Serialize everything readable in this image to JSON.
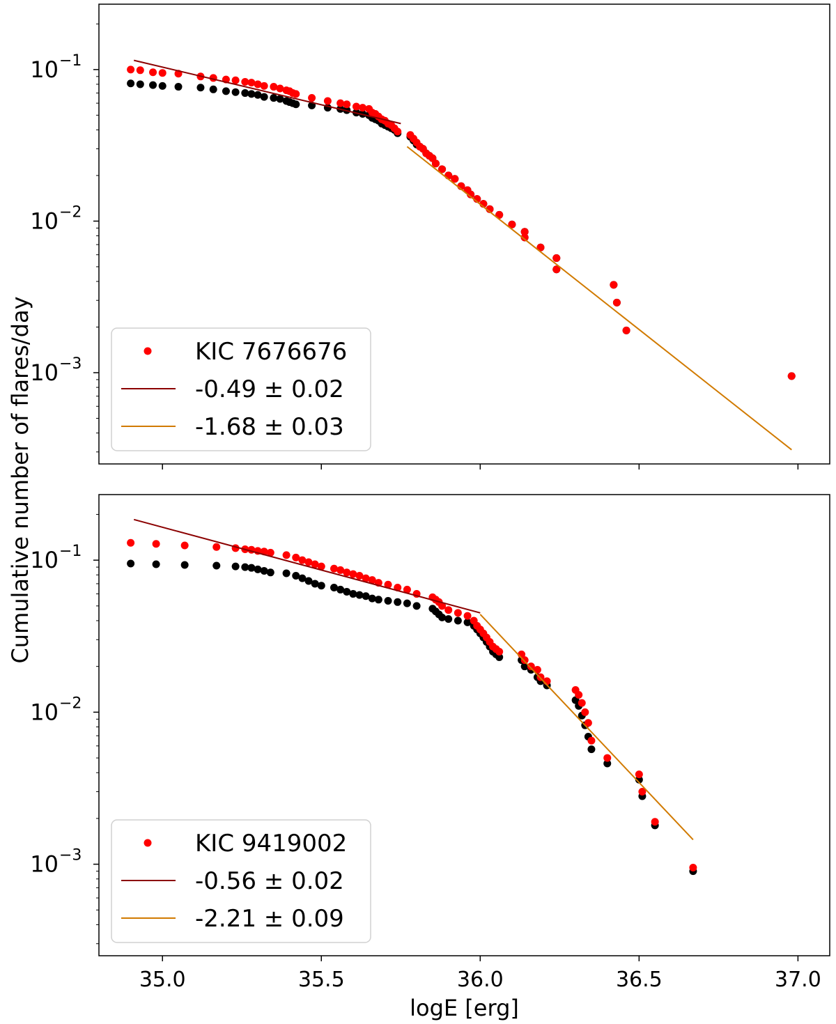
{
  "chart_data": [
    {
      "type": "scatter",
      "ylabel": "Cumulative number of flares/day",
      "xlabel": "",
      "xlim": [
        34.8,
        37.1
      ],
      "ylim": [
        0.00025,
        0.27
      ],
      "yscale": "log",
      "xticks": [
        "35.0",
        "35.5",
        "36.0",
        "36.5",
        "37.0"
      ],
      "show_xticklabels": false,
      "yticks": [
        {
          "value": 0.1,
          "exp": "−1"
        },
        {
          "value": 0.01,
          "exp": "−2"
        },
        {
          "value": 0.001,
          "exp": "−3"
        }
      ],
      "legend_position": "lower-left",
      "series": [
        {
          "name": "",
          "color": "#000000",
          "marker": "dot",
          "x": [
            34.9,
            34.93,
            34.97,
            35.0,
            35.05,
            35.12,
            35.16,
            35.2,
            35.23,
            35.26,
            35.28,
            35.3,
            35.32,
            35.35,
            35.37,
            35.39,
            35.4,
            35.41,
            35.42,
            35.47,
            35.52,
            35.56,
            35.58,
            35.61,
            35.63,
            35.65,
            35.66,
            35.67,
            35.68,
            35.69,
            35.7,
            35.71,
            35.72,
            35.73,
            35.74,
            35.78,
            35.79,
            35.8,
            35.81,
            35.82,
            35.83,
            35.84,
            35.85,
            35.86,
            35.88,
            35.9,
            35.92,
            35.94,
            35.96,
            35.97,
            35.99,
            36.01,
            36.03,
            36.06,
            36.1,
            36.14,
            36.14,
            36.19,
            36.24,
            36.24,
            36.42,
            36.43,
            36.46,
            36.98
          ],
          "y": [
            0.081,
            0.08,
            0.079,
            0.078,
            0.077,
            0.076,
            0.074,
            0.072,
            0.071,
            0.07,
            0.069,
            0.068,
            0.066,
            0.065,
            0.064,
            0.062,
            0.061,
            0.06,
            0.059,
            0.058,
            0.056,
            0.055,
            0.054,
            0.052,
            0.051,
            0.05,
            0.048,
            0.047,
            0.046,
            0.044,
            0.043,
            0.042,
            0.041,
            0.04,
            0.038,
            0.036,
            0.034,
            0.032,
            0.031,
            0.03,
            0.028,
            0.027,
            0.026,
            0.024,
            0.022,
            0.02,
            0.019,
            0.017,
            0.016,
            0.015,
            0.014,
            0.013,
            0.012,
            0.011,
            0.0095,
            0.0085,
            0.0078,
            0.0067,
            0.0057,
            0.0048,
            0.0038,
            0.0029,
            0.0019,
            0.00095
          ]
        },
        {
          "name": "KIC 7676676",
          "color": "#ff0000",
          "marker": "dot",
          "x": [
            34.9,
            34.93,
            34.97,
            35.0,
            35.05,
            35.12,
            35.16,
            35.2,
            35.23,
            35.26,
            35.28,
            35.3,
            35.32,
            35.35,
            35.37,
            35.39,
            35.4,
            35.41,
            35.42,
            35.47,
            35.52,
            35.56,
            35.58,
            35.61,
            35.63,
            35.65,
            35.66,
            35.67,
            35.68,
            35.69,
            35.7,
            35.71,
            35.72,
            35.73,
            35.74,
            35.78,
            35.79,
            35.8,
            35.81,
            35.82,
            35.83,
            35.84,
            35.85,
            35.86,
            35.88,
            35.9,
            35.92,
            35.94,
            35.96,
            35.97,
            35.99,
            36.01,
            36.03,
            36.06,
            36.1,
            36.14,
            36.14,
            36.19,
            36.24,
            36.24,
            36.42,
            36.43,
            36.46,
            36.98
          ],
          "y": [
            0.1,
            0.099,
            0.096,
            0.095,
            0.094,
            0.09,
            0.088,
            0.086,
            0.085,
            0.083,
            0.082,
            0.08,
            0.078,
            0.077,
            0.075,
            0.073,
            0.072,
            0.07,
            0.069,
            0.065,
            0.062,
            0.06,
            0.059,
            0.057,
            0.056,
            0.055,
            0.052,
            0.051,
            0.049,
            0.047,
            0.046,
            0.044,
            0.043,
            0.041,
            0.039,
            0.037,
            0.035,
            0.033,
            0.031,
            0.03,
            0.028,
            0.027,
            0.026,
            0.024,
            0.022,
            0.02,
            0.019,
            0.017,
            0.016,
            0.015,
            0.014,
            0.013,
            0.012,
            0.011,
            0.0095,
            0.0085,
            0.0078,
            0.0067,
            0.0057,
            0.0048,
            0.0038,
            0.0029,
            0.0019,
            0.00095
          ]
        },
        {
          "name": "-0.49 ± 0.02",
          "color": "#8b0000",
          "marker": "line",
          "x": [
            34.91,
            35.75
          ],
          "y": [
            0.115,
            0.044
          ]
        },
        {
          "name": "-1.68 ± 0.03",
          "color": "#d17a00",
          "marker": "line",
          "x": [
            35.77,
            36.98
          ],
          "y": [
            0.031,
            0.00031
          ]
        }
      ]
    },
    {
      "type": "scatter",
      "ylabel": "Cumulative number of flares/day",
      "xlabel": "logE [erg]",
      "xlim": [
        34.8,
        37.1
      ],
      "ylim": [
        0.00025,
        0.27
      ],
      "yscale": "log",
      "xticks": [
        "35.0",
        "35.5",
        "36.0",
        "36.5",
        "37.0"
      ],
      "show_xticklabels": true,
      "yticks": [
        {
          "value": 0.1,
          "exp": "−1"
        },
        {
          "value": 0.01,
          "exp": "−2"
        },
        {
          "value": 0.001,
          "exp": "−3"
        }
      ],
      "legend_position": "lower-left",
      "series": [
        {
          "name": "",
          "color": "#000000",
          "marker": "dot",
          "x": [
            34.9,
            34.98,
            35.07,
            35.17,
            35.23,
            35.26,
            35.28,
            35.3,
            35.32,
            35.34,
            35.39,
            35.42,
            35.44,
            35.46,
            35.48,
            35.5,
            35.54,
            35.56,
            35.58,
            35.6,
            35.62,
            35.64,
            35.66,
            35.68,
            35.71,
            35.74,
            35.77,
            35.8,
            35.85,
            35.86,
            35.87,
            35.88,
            35.9,
            35.93,
            35.96,
            35.98,
            35.99,
            36.0,
            36.01,
            36.02,
            36.03,
            36.04,
            36.05,
            36.06,
            36.13,
            36.14,
            36.16,
            36.18,
            36.19,
            36.21,
            36.3,
            36.31,
            36.32,
            36.33,
            36.34,
            36.35,
            36.4,
            36.5,
            36.51,
            36.55,
            36.67
          ],
          "y": [
            0.095,
            0.094,
            0.093,
            0.092,
            0.091,
            0.09,
            0.089,
            0.087,
            0.085,
            0.083,
            0.082,
            0.079,
            0.076,
            0.073,
            0.07,
            0.068,
            0.066,
            0.064,
            0.062,
            0.06,
            0.059,
            0.058,
            0.056,
            0.055,
            0.054,
            0.053,
            0.052,
            0.05,
            0.048,
            0.046,
            0.044,
            0.042,
            0.041,
            0.04,
            0.039,
            0.037,
            0.035,
            0.033,
            0.031,
            0.029,
            0.027,
            0.025,
            0.024,
            0.023,
            0.022,
            0.02,
            0.019,
            0.017,
            0.016,
            0.015,
            0.012,
            0.011,
            0.0095,
            0.0082,
            0.0069,
            0.0057,
            0.0046,
            0.0036,
            0.0028,
            0.0018,
            0.0009
          ]
        },
        {
          "name": "KIC 9419002",
          "color": "#ff0000",
          "marker": "dot",
          "x": [
            34.9,
            34.98,
            35.07,
            35.17,
            35.23,
            35.26,
            35.28,
            35.3,
            35.32,
            35.34,
            35.39,
            35.42,
            35.44,
            35.46,
            35.48,
            35.5,
            35.54,
            35.56,
            35.58,
            35.6,
            35.62,
            35.64,
            35.66,
            35.68,
            35.71,
            35.74,
            35.77,
            35.8,
            35.85,
            35.86,
            35.87,
            35.88,
            35.9,
            35.93,
            35.96,
            35.98,
            35.99,
            36.0,
            36.01,
            36.02,
            36.03,
            36.04,
            36.05,
            36.06,
            36.13,
            36.14,
            36.16,
            36.18,
            36.19,
            36.21,
            36.3,
            36.31,
            36.32,
            36.33,
            36.34,
            36.35,
            36.4,
            36.5,
            36.51,
            36.55,
            36.67
          ],
          "y": [
            0.13,
            0.128,
            0.125,
            0.122,
            0.12,
            0.118,
            0.117,
            0.115,
            0.114,
            0.112,
            0.108,
            0.104,
            0.1,
            0.097,
            0.094,
            0.091,
            0.088,
            0.086,
            0.083,
            0.081,
            0.079,
            0.076,
            0.074,
            0.071,
            0.069,
            0.066,
            0.064,
            0.06,
            0.057,
            0.055,
            0.053,
            0.05,
            0.047,
            0.045,
            0.043,
            0.04,
            0.037,
            0.035,
            0.033,
            0.031,
            0.029,
            0.027,
            0.026,
            0.025,
            0.024,
            0.022,
            0.02,
            0.019,
            0.017,
            0.016,
            0.014,
            0.013,
            0.0115,
            0.01,
            0.0085,
            0.0065,
            0.005,
            0.0039,
            0.003,
            0.0019,
            0.00095
          ]
        },
        {
          "name": "-0.56 ± 0.02",
          "color": "#8b0000",
          "marker": "line",
          "x": [
            34.91,
            36.0
          ],
          "y": [
            0.185,
            0.045
          ]
        },
        {
          "name": "-2.21 ± 0.09",
          "color": "#d17a00",
          "marker": "line",
          "x": [
            36.0,
            36.67
          ],
          "y": [
            0.044,
            0.00145
          ]
        }
      ]
    }
  ]
}
